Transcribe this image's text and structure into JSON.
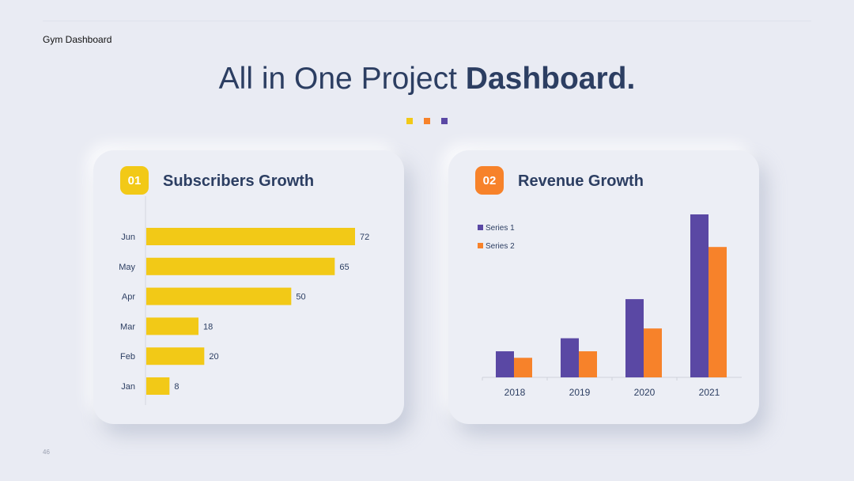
{
  "header": {
    "brand": "Gym Dashboard",
    "title_light": "All in One Project ",
    "title_bold": "Dashboard."
  },
  "colors": {
    "yellow": "#f2c917",
    "orange": "#f7822a",
    "purple": "#5a48a4",
    "navy": "#2c3e62"
  },
  "page_number": "46",
  "cards": [
    {
      "badge": "01",
      "title": "Subscribers Growth"
    },
    {
      "badge": "02",
      "title": "Revenue Growth"
    }
  ],
  "chart_data": [
    {
      "type": "bar",
      "orientation": "horizontal",
      "categories": [
        "Jun",
        "May",
        "Apr",
        "Mar",
        "Feb",
        "Jan"
      ],
      "values": [
        72,
        65,
        50,
        18,
        20,
        8
      ],
      "data_labels": true,
      "color": "#f2c917"
    },
    {
      "type": "bar",
      "categories": [
        "2018",
        "2019",
        "2020",
        "2021"
      ],
      "series": [
        {
          "name": "Series 1",
          "color": "#5a48a4",
          "values": [
            1.6,
            2.4,
            4.8,
            10
          ]
        },
        {
          "name": "Series 2",
          "color": "#f7822a",
          "values": [
            1.2,
            1.6,
            3.0,
            8.0
          ]
        }
      ],
      "legend_position": "top-left",
      "ylim": [
        0,
        10
      ]
    }
  ]
}
